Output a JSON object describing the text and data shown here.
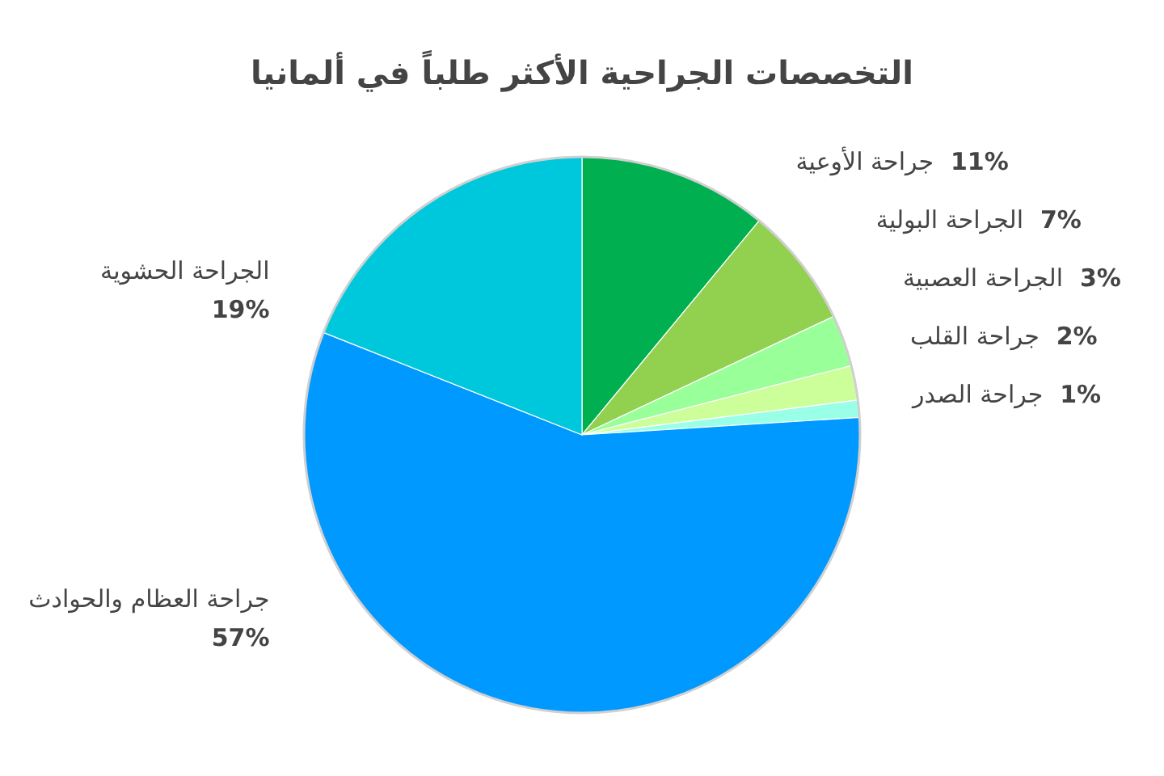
{
  "chart_data": {
    "type": "pie",
    "title": "التخصصات الجراحية الأكثر طلباً في ألمانيا",
    "categories": [
      "جراحة الأوعية",
      "الجراحة البولية",
      "الجراحة العصبية",
      "جراحة القلب",
      "جراحة الصدر",
      "جراحة العظام والحوادث",
      "الجراحة الحشوية"
    ],
    "values": [
      11,
      7,
      3,
      2,
      1,
      57,
      19
    ],
    "value_labels": [
      "11%",
      "7%",
      "3%",
      "2%",
      "1%",
      "57%",
      "19%"
    ],
    "colors": [
      "#00b050",
      "#92d050",
      "#99ff99",
      "#ccff99",
      "#99ffe6",
      "#0099ff",
      "#00c8dc"
    ]
  }
}
